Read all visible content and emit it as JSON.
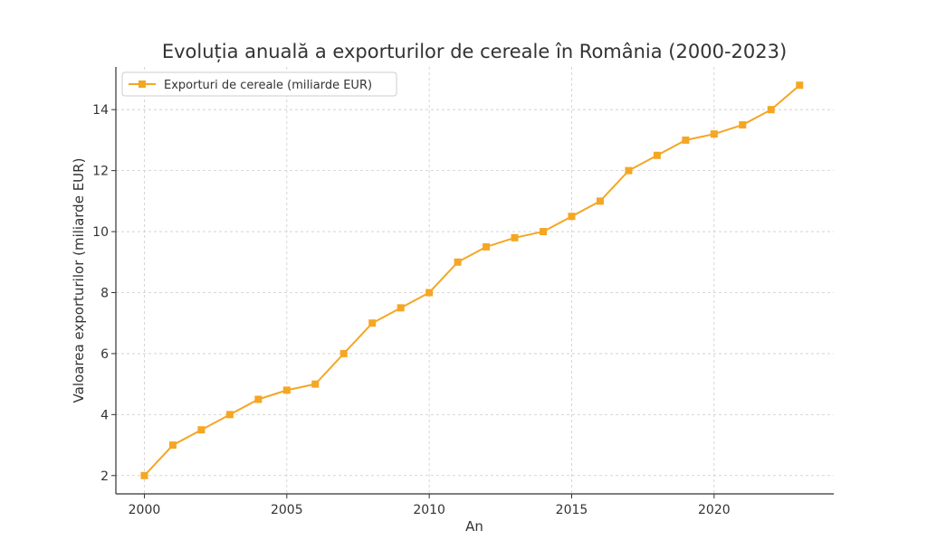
{
  "chart_data": {
    "type": "line",
    "title": "Evoluția anuală a exporturilor de cereale în România (2000-2023)",
    "xlabel": "An",
    "ylabel": "Valoarea exporturilor (miliarde EUR)",
    "x": [
      2000,
      2001,
      2002,
      2003,
      2004,
      2005,
      2006,
      2007,
      2008,
      2009,
      2010,
      2011,
      2012,
      2013,
      2014,
      2015,
      2016,
      2017,
      2018,
      2019,
      2020,
      2021,
      2022,
      2023
    ],
    "series": [
      {
        "name": "Exporturi de cereale (miliarde EUR)",
        "color": "#f5a623",
        "marker": "square",
        "values": [
          2.0,
          3.0,
          3.5,
          4.0,
          4.5,
          4.8,
          5.0,
          6.0,
          7.0,
          7.5,
          8.0,
          9.0,
          9.5,
          9.8,
          10.0,
          10.5,
          11.0,
          12.0,
          12.5,
          13.0,
          13.2,
          13.5,
          14.0,
          14.8
        ]
      }
    ],
    "xlim": [
      1999.0,
      2024.2
    ],
    "ylim": [
      1.4,
      15.4
    ],
    "xticks": [
      2000,
      2005,
      2010,
      2015,
      2020
    ],
    "yticks": [
      2,
      4,
      6,
      8,
      10,
      12,
      14
    ],
    "grid": true,
    "legend_position": "top-left"
  }
}
